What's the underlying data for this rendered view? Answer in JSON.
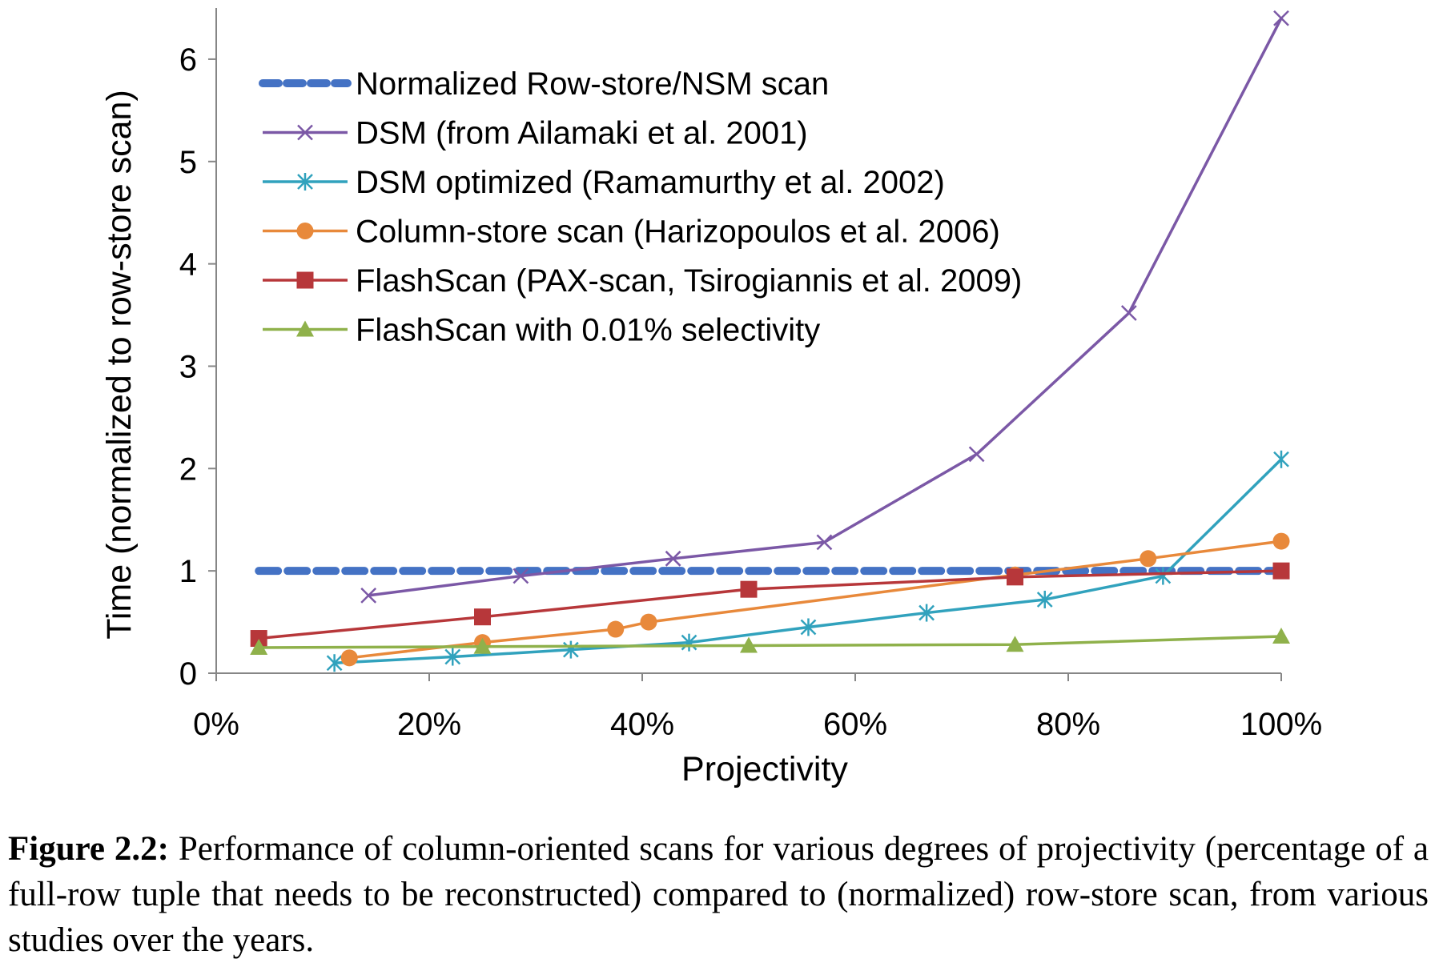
{
  "chart_data": {
    "type": "line",
    "xlabel": "Projectivity",
    "ylabel": "Time (normalized to row-store scan)",
    "xlim": [
      0,
      100
    ],
    "ylim": [
      0,
      6.5
    ],
    "x_ticks": [
      "0%",
      "20%",
      "40%",
      "60%",
      "80%",
      "100%"
    ],
    "x_tick_values": [
      0,
      20,
      40,
      60,
      80,
      100
    ],
    "y_ticks": [
      "0",
      "1",
      "2",
      "3",
      "4",
      "5",
      "6"
    ],
    "y_tick_values": [
      0,
      1,
      2,
      3,
      4,
      5,
      6
    ],
    "grid": false,
    "legend_position": "top-left",
    "series": [
      {
        "name": "Normalized Row-store/NSM scan",
        "color": "#4472C4",
        "marker": "none",
        "line_style": "dashed",
        "points": [
          [
            4,
            1.0
          ],
          [
            100,
            1.0
          ]
        ]
      },
      {
        "name": "DSM (from Ailamaki et al. 2001)",
        "color": "#7B58A6",
        "marker": "x",
        "line_style": "solid",
        "points": [
          [
            14.3,
            0.76
          ],
          [
            28.6,
            0.95
          ],
          [
            42.9,
            1.12
          ],
          [
            57.1,
            1.28
          ],
          [
            71.4,
            2.14
          ],
          [
            85.7,
            3.52
          ],
          [
            100,
            6.4
          ]
        ]
      },
      {
        "name": "DSM optimized (Ramamurthy et al. 2002)",
        "color": "#31A2BD",
        "marker": "asterisk",
        "line_style": "solid",
        "points": [
          [
            11.1,
            0.1
          ],
          [
            22.2,
            0.16
          ],
          [
            33.3,
            0.23
          ],
          [
            44.4,
            0.3
          ],
          [
            55.6,
            0.45
          ],
          [
            66.7,
            0.59
          ],
          [
            77.8,
            0.72
          ],
          [
            88.9,
            0.95
          ],
          [
            100,
            2.09
          ]
        ]
      },
      {
        "name": "Column-store scan (Harizopoulos et al. 2006)",
        "color": "#E8893B",
        "marker": "circle",
        "line_style": "solid",
        "points": [
          [
            12.5,
            0.15
          ],
          [
            25,
            0.3
          ],
          [
            37.5,
            0.43
          ],
          [
            40.6,
            0.5
          ],
          [
            75,
            0.96
          ],
          [
            87.5,
            1.12
          ],
          [
            100,
            1.29
          ]
        ]
      },
      {
        "name": "FlashScan (PAX-scan, Tsirogiannis et al. 2009)",
        "color": "#B7373A",
        "marker": "square",
        "line_style": "solid",
        "points": [
          [
            4,
            0.34
          ],
          [
            25,
            0.55
          ],
          [
            50,
            0.82
          ],
          [
            75,
            0.94
          ],
          [
            100,
            1.0
          ]
        ]
      },
      {
        "name": "FlashScan with 0.01% selectivity",
        "color": "#8FB14B",
        "marker": "triangle",
        "line_style": "solid",
        "points": [
          [
            4,
            0.25
          ],
          [
            25,
            0.26
          ],
          [
            50,
            0.27
          ],
          [
            75,
            0.28
          ],
          [
            100,
            0.36
          ]
        ]
      }
    ]
  },
  "caption": {
    "label": "Figure 2.2:",
    "text": " Performance of column-oriented scans for various degrees of projectivity (percentage of a full-row tuple that needs to be reconstructed) compared to (normalized) row-store scan, from various studies over the years."
  }
}
